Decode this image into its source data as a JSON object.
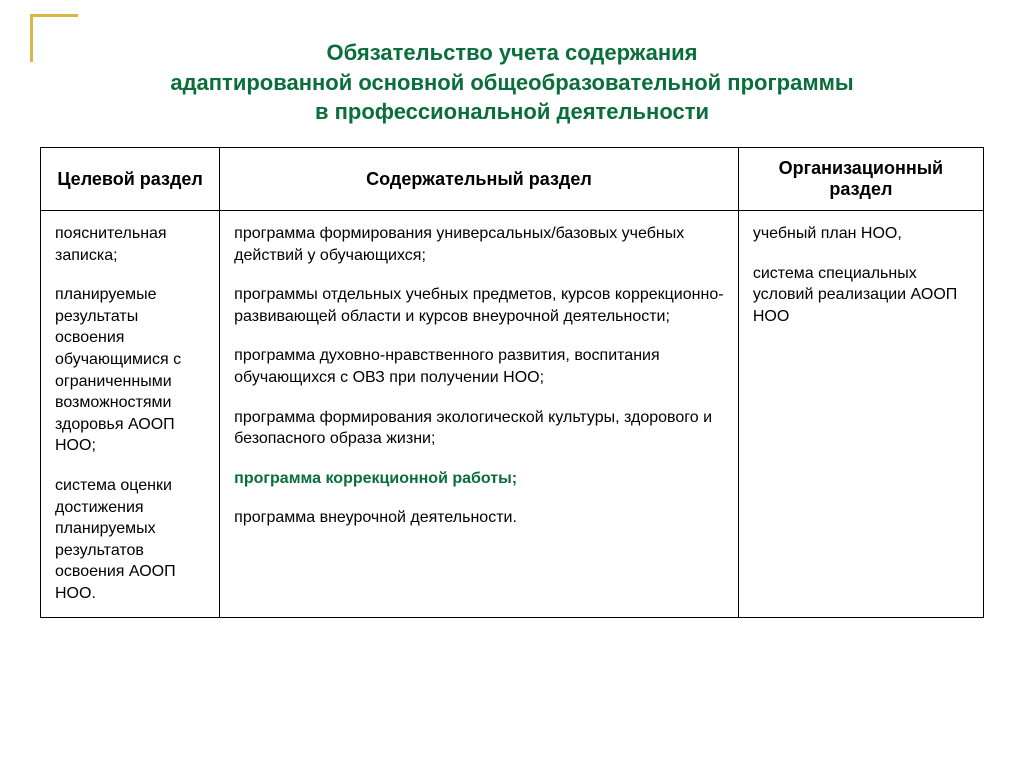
{
  "corner_color": "#d6b84a",
  "title": {
    "lines": [
      "Обязательство учета содержания",
      "адаптированной основной общеобразовательной программы",
      "в профессиональной деятельности"
    ],
    "color": "#0a6e3a",
    "fontsize": 22
  },
  "table": {
    "header_fontsize": 18,
    "body_fontsize": 16,
    "col_widths": [
      "19%",
      "55%",
      "26%"
    ],
    "headers": [
      "Целевой раздел",
      "Содержательный раздел",
      "Организационный раздел"
    ],
    "highlight_color": "#0a6e3a",
    "cells": {
      "col1": [
        {
          "text": "пояснительная записка;"
        },
        {
          "text": "планируемые результаты освоения обучающимися с ограниченными возможностями здоровья АООП НОО;"
        },
        {
          "text": "система оценки достижения планируемых результатов освоения АООП НОО."
        }
      ],
      "col2": [
        {
          "text": "программа формирования универсальных/базовых учебных действий у обучающихся;"
        },
        {
          "text": "программы отдельных учебных предметов, курсов коррекционно-развивающей области и курсов внеурочной деятельности;"
        },
        {
          "text": "программа духовно-нравственного развития, воспитания обучающихся с ОВЗ при получении НОО;"
        },
        {
          "text": "программа формирования экологической культуры, здорового и безопасного образа жизни;"
        },
        {
          "text": "программа коррекционной работы;",
          "highlight": true
        },
        {
          "text": "программа внеурочной деятельности."
        }
      ],
      "col3": [
        {
          "text": "учебный план НОО,"
        },
        {
          "text": "система специальных условий реализации АООП НОО"
        }
      ]
    }
  }
}
